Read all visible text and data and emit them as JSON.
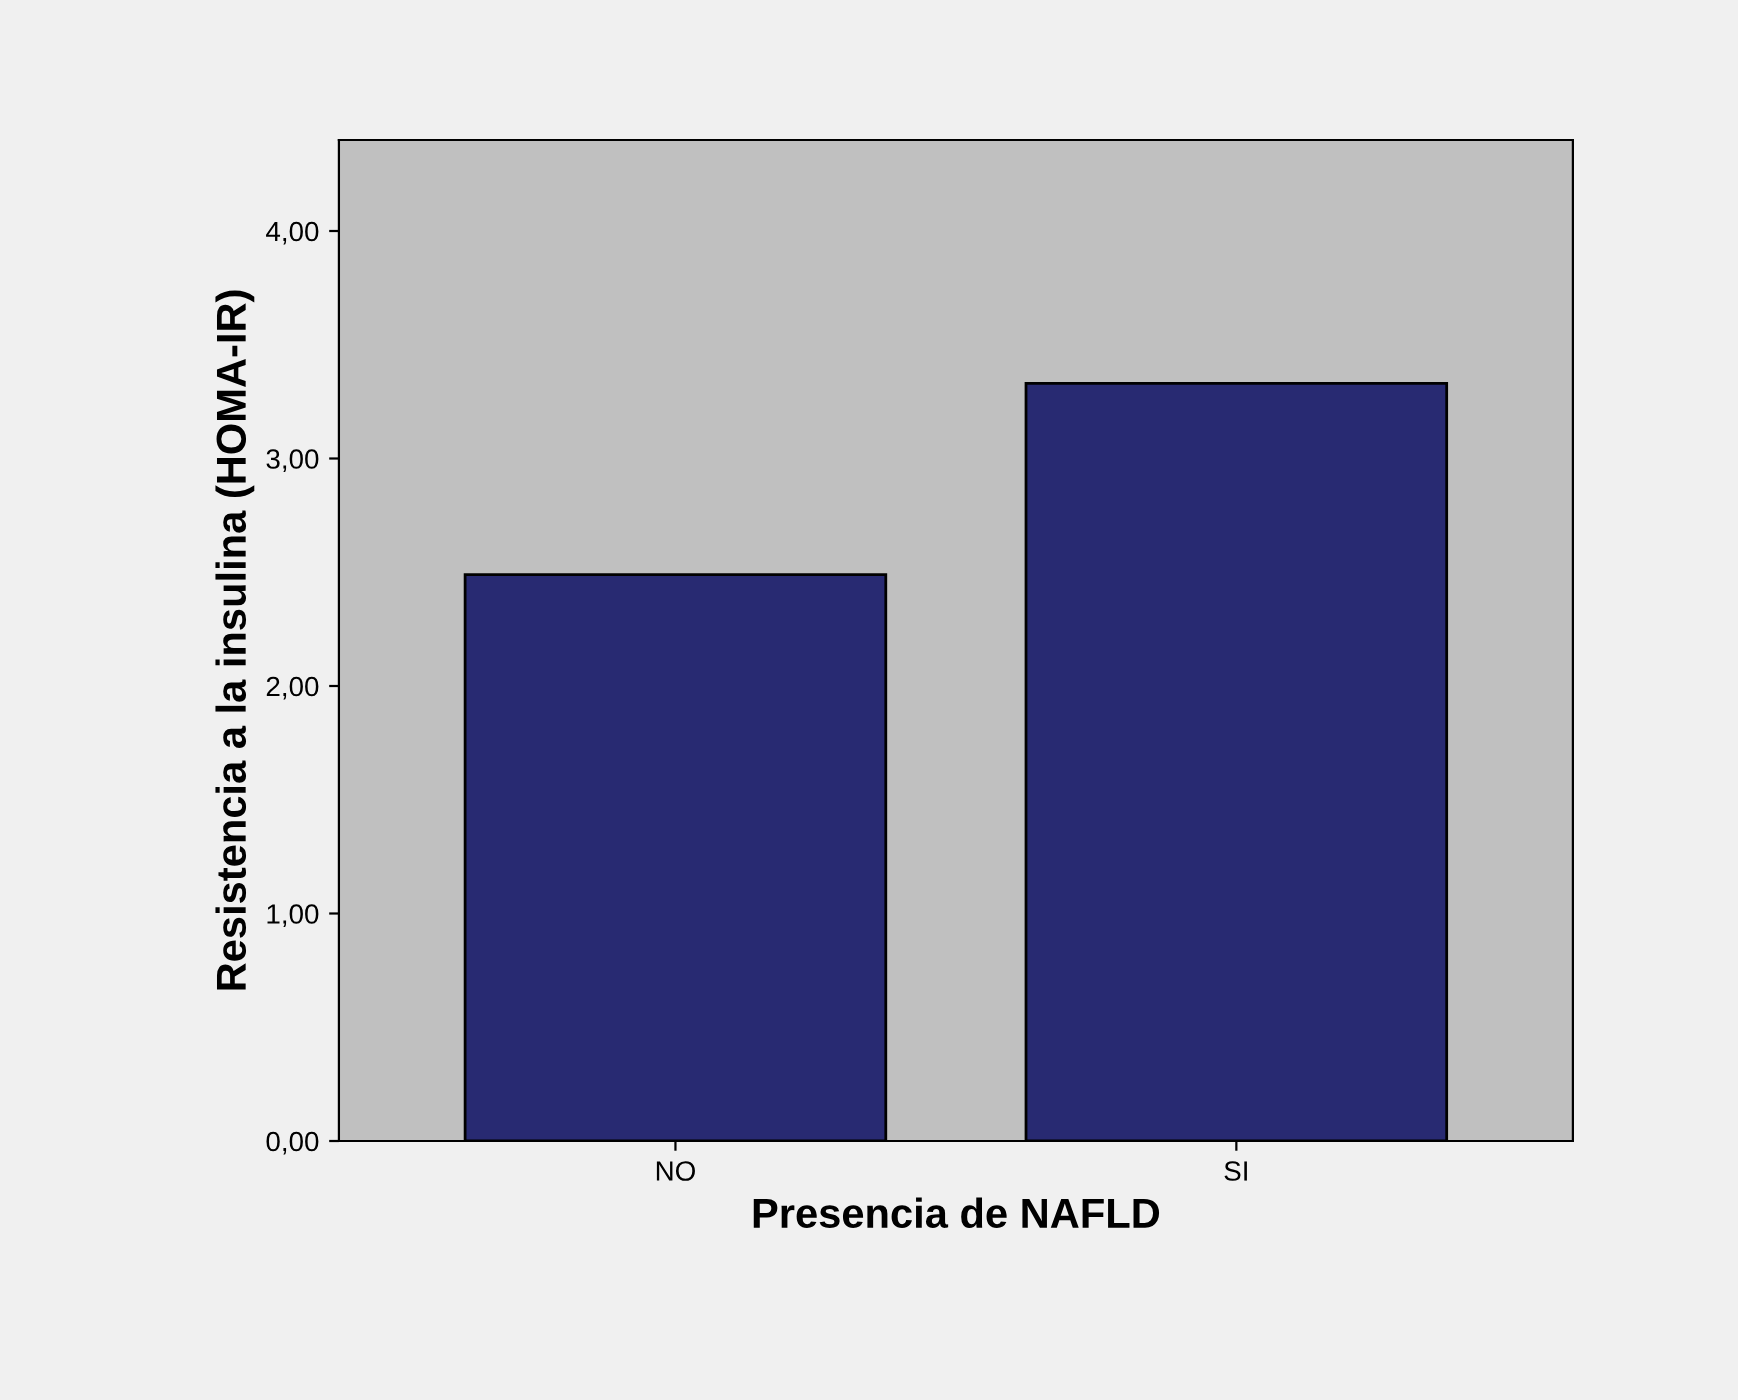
{
  "chart_data": {
    "type": "bar",
    "xlabel": "Presencia de NAFLD",
    "ylabel": "Resistencia a la insulina (HOMA-IR)",
    "categories": [
      "NO",
      "SI"
    ],
    "values": [
      2.49,
      3.33
    ],
    "color": "#282a72",
    "ylim": [
      0,
      4.4
    ],
    "yticks": [
      {
        "value": 0,
        "label": "0,00"
      },
      {
        "value": 1,
        "label": "1,00"
      },
      {
        "value": 2,
        "label": "2,00"
      },
      {
        "value": 3,
        "label": "3,00"
      },
      {
        "value": 4,
        "label": "4,00"
      }
    ],
    "grid": false,
    "legend": false
  }
}
